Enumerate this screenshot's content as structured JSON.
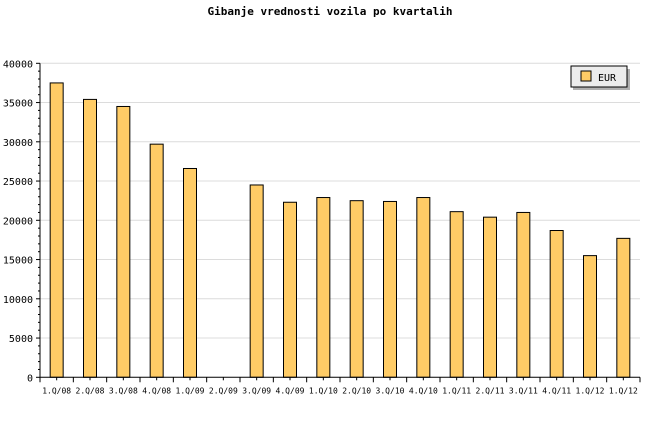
{
  "chart_data": {
    "type": "bar",
    "title": "Gibanje vrednosti vozila po kvartalih",
    "xlabel": "",
    "ylabel": "",
    "ylim": [
      0,
      40000
    ],
    "yticks": [
      0,
      5000,
      10000,
      15000,
      20000,
      25000,
      30000,
      35000,
      40000
    ],
    "grid": true,
    "legend_position": "top-right",
    "categories": [
      "1.Q/08",
      "2.Q/08",
      "3.Q/08",
      "4.Q/08",
      "1.Q/09",
      "2.Q/09",
      "3.Q/09",
      "4.Q/09",
      "1.Q/10",
      "2.Q/10",
      "3.Q/10",
      "4.Q/10",
      "1.Q/11",
      "2.Q/11",
      "3.Q/11",
      "4.Q/11",
      "1.Q/12",
      "1.Q/12"
    ],
    "series": [
      {
        "name": "EUR",
        "color": "#ffcc66",
        "values": [
          37500,
          35400,
          34500,
          29700,
          26600,
          null,
          24500,
          22300,
          22900,
          22500,
          22400,
          22900,
          21100,
          20400,
          21000,
          18700,
          15500,
          17700
        ]
      }
    ]
  }
}
